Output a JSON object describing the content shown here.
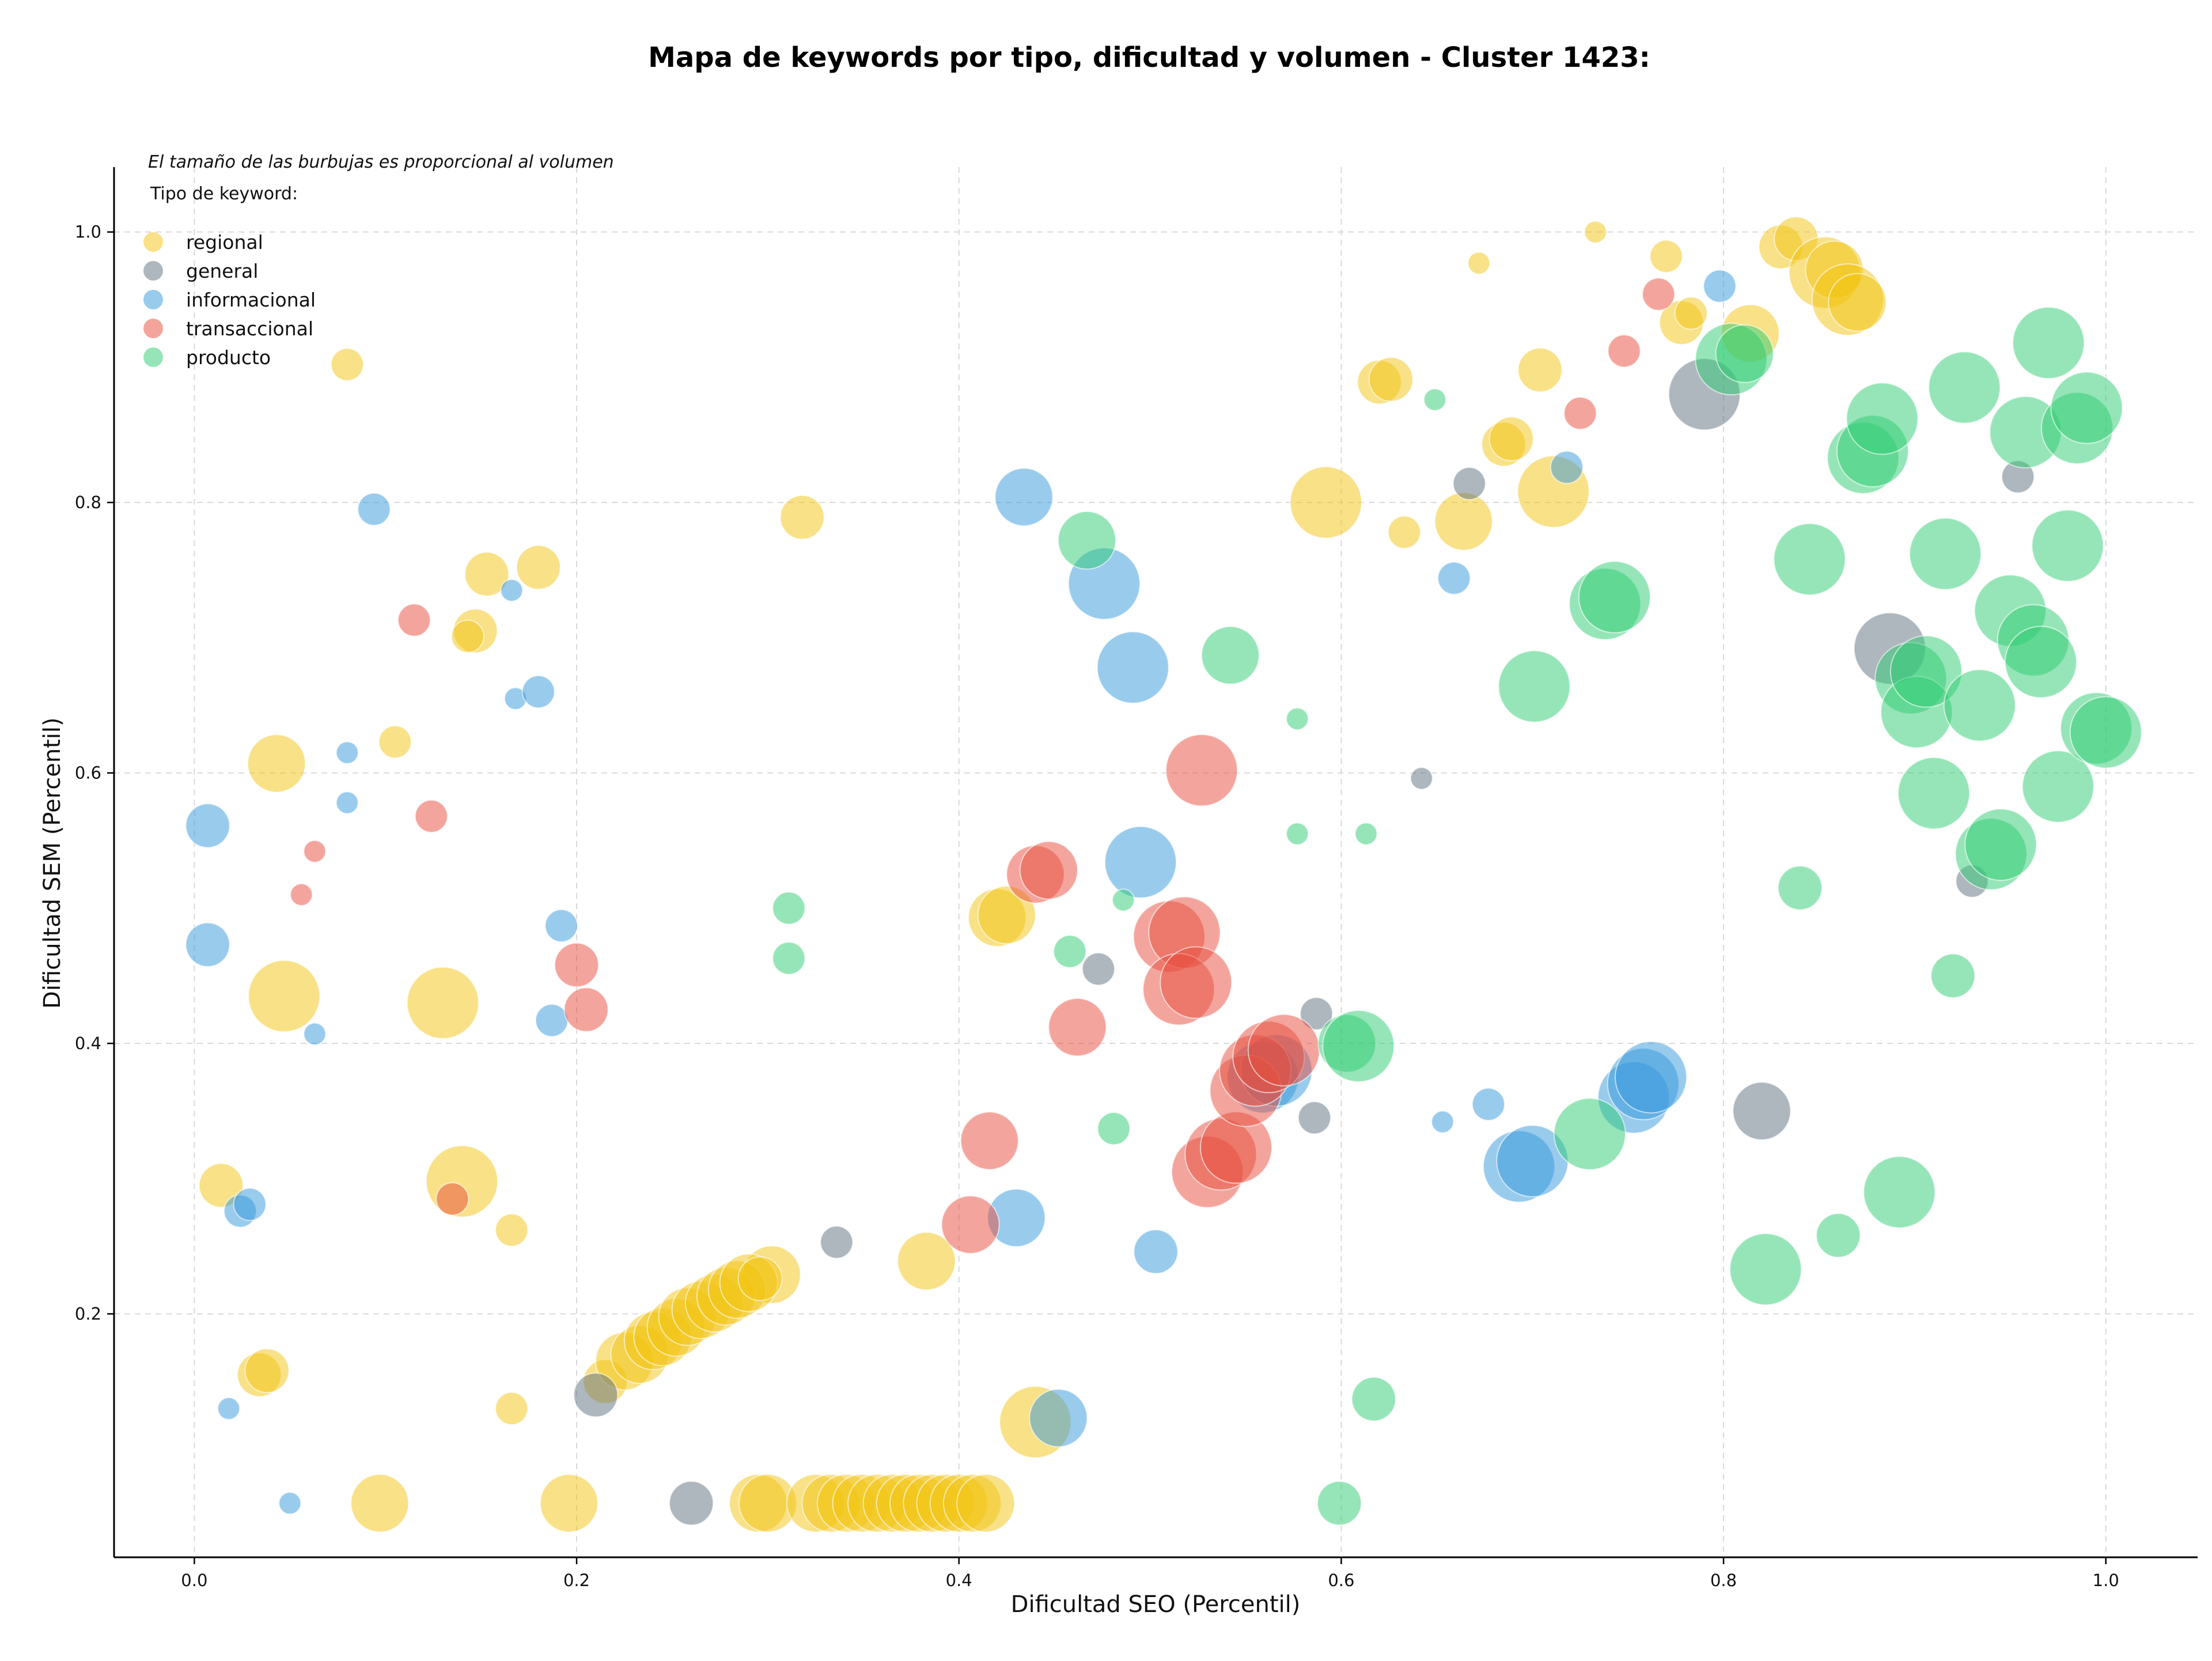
{
  "chart_data": {
    "type": "scatter",
    "title": "Mapa de keywords por tipo, dificultad y volumen - Cluster 1423:",
    "subtitle_note": "El tamaño de las burbujas es proporcional al volumen",
    "xlabel": "Dificultad SEO (Percentil)",
    "ylabel": "Dificultad SEM (Percentil)",
    "xlim": [
      -0.042,
      1.048
    ],
    "ylim": [
      0.02,
      1.048
    ],
    "xticks": [
      "0.0",
      "0.2",
      "0.4",
      "0.6",
      "0.8",
      "1.0"
    ],
    "xtick_values": [
      0,
      0.2,
      0.4,
      0.6,
      0.8,
      1.0
    ],
    "yticks": [
      "0.2",
      "0.4",
      "0.6",
      "0.8",
      "1.0"
    ],
    "ytick_values": [
      0.2,
      0.4,
      0.6,
      0.8,
      1.0
    ],
    "grid": true,
    "legend_title": "Tipo de keyword:",
    "legend_position": "top-left",
    "series": [
      {
        "name": "regional",
        "color": "#f1c40f",
        "points": [
          [
            0.08,
            0.902,
            2
          ],
          [
            0.318,
            0.789,
            3
          ],
          [
            0.153,
            0.747,
            3
          ],
          [
            0.18,
            0.752,
            3
          ],
          [
            0.147,
            0.705,
            3
          ],
          [
            0.143,
            0.701,
            2
          ],
          [
            0.043,
            0.607,
            4
          ],
          [
            0.105,
            0.623,
            2
          ],
          [
            0.047,
            0.435,
            5
          ],
          [
            0.13,
            0.43,
            5
          ],
          [
            0.014,
            0.295,
            3
          ],
          [
            0.14,
            0.298,
            5
          ],
          [
            0.166,
            0.262,
            2
          ],
          [
            0.034,
            0.155,
            3
          ],
          [
            0.038,
            0.158,
            3
          ],
          [
            0.166,
            0.13,
            2
          ],
          [
            0.097,
            0.06,
            4
          ],
          [
            0.196,
            0.06,
            4
          ],
          [
            0.42,
            0.493,
            4
          ],
          [
            0.425,
            0.495,
            4
          ],
          [
            0.383,
            0.239,
            4
          ],
          [
            0.44,
            0.12,
            5
          ],
          [
            0.302,
            0.229,
            4
          ],
          [
            0.215,
            0.15,
            3
          ],
          [
            0.225,
            0.165,
            4
          ],
          [
            0.233,
            0.17,
            4
          ],
          [
            0.24,
            0.18,
            4
          ],
          [
            0.245,
            0.183,
            4
          ],
          [
            0.252,
            0.19,
            4
          ],
          [
            0.258,
            0.198,
            4
          ],
          [
            0.265,
            0.203,
            4
          ],
          [
            0.272,
            0.208,
            4
          ],
          [
            0.278,
            0.213,
            4
          ],
          [
            0.284,
            0.218,
            4
          ],
          [
            0.29,
            0.223,
            4
          ],
          [
            0.296,
            0.226,
            3
          ],
          [
            0.295,
            0.06,
            4
          ],
          [
            0.3,
            0.06,
            4
          ],
          [
            0.325,
            0.06,
            4
          ],
          [
            0.333,
            0.06,
            4
          ],
          [
            0.341,
            0.06,
            4
          ],
          [
            0.349,
            0.06,
            4
          ],
          [
            0.357,
            0.06,
            4
          ],
          [
            0.365,
            0.06,
            4
          ],
          [
            0.372,
            0.06,
            4
          ],
          [
            0.379,
            0.06,
            4
          ],
          [
            0.386,
            0.06,
            4
          ],
          [
            0.393,
            0.06,
            4
          ],
          [
            0.4,
            0.06,
            4
          ],
          [
            0.407,
            0.06,
            4
          ],
          [
            0.414,
            0.06,
            4
          ],
          [
            0.592,
            0.8,
            5
          ],
          [
            0.62,
            0.889,
            3
          ],
          [
            0.626,
            0.891,
            3
          ],
          [
            0.633,
            0.778,
            2
          ],
          [
            0.664,
            0.786,
            4
          ],
          [
            0.672,
            0.977,
            1
          ],
          [
            0.685,
            0.843,
            3
          ],
          [
            0.689,
            0.847,
            3
          ],
          [
            0.704,
            0.898,
            3
          ],
          [
            0.711,
            0.808,
            5
          ],
          [
            0.733,
            1.0,
            1
          ],
          [
            0.77,
            0.982,
            2
          ],
          [
            0.778,
            0.933,
            3
          ],
          [
            0.783,
            0.94,
            2
          ],
          [
            0.814,
            0.925,
            4
          ],
          [
            0.83,
            0.989,
            3
          ],
          [
            0.838,
            0.995,
            3
          ],
          [
            0.853,
            0.97,
            5
          ],
          [
            0.858,
            0.972,
            4
          ],
          [
            0.865,
            0.95,
            5
          ],
          [
            0.87,
            0.948,
            4
          ]
        ]
      },
      {
        "name": "general",
        "color": "#5d6d7e",
        "points": [
          [
            0.21,
            0.14,
            3
          ],
          [
            0.26,
            0.06,
            3
          ],
          [
            0.336,
            0.253,
            2
          ],
          [
            0.473,
            0.455,
            2
          ],
          [
            0.586,
            0.345,
            2
          ],
          [
            0.587,
            0.422,
            2
          ],
          [
            0.642,
            0.596,
            1
          ],
          [
            0.667,
            0.814,
            2
          ],
          [
            0.79,
            0.88,
            5
          ],
          [
            0.82,
            0.35,
            4
          ],
          [
            0.887,
            0.692,
            5
          ],
          [
            0.93,
            0.52,
            2
          ],
          [
            0.954,
            0.819,
            2
          ]
        ]
      },
      {
        "name": "informacional",
        "color": "#3498db",
        "points": [
          [
            0.094,
            0.795,
            2
          ],
          [
            0.166,
            0.735,
            1
          ],
          [
            0.168,
            0.655,
            1
          ],
          [
            0.18,
            0.66,
            2
          ],
          [
            0.08,
            0.615,
            1
          ],
          [
            0.08,
            0.578,
            1
          ],
          [
            0.007,
            0.561,
            3
          ],
          [
            0.007,
            0.473,
            3
          ],
          [
            0.063,
            0.407,
            1
          ],
          [
            0.192,
            0.487,
            2
          ],
          [
            0.187,
            0.417,
            2
          ],
          [
            0.024,
            0.276,
            2
          ],
          [
            0.029,
            0.281,
            2
          ],
          [
            0.018,
            0.13,
            1
          ],
          [
            0.05,
            0.06,
            1
          ],
          [
            0.434,
            0.804,
            4
          ],
          [
            0.476,
            0.74,
            5
          ],
          [
            0.491,
            0.678,
            5
          ],
          [
            0.495,
            0.534,
            5
          ],
          [
            0.43,
            0.271,
            4
          ],
          [
            0.452,
            0.123,
            4
          ],
          [
            0.503,
            0.246,
            3
          ],
          [
            0.559,
            0.375,
            5
          ],
          [
            0.566,
            0.38,
            5
          ],
          [
            0.653,
            0.342,
            1
          ],
          [
            0.659,
            0.744,
            2
          ],
          [
            0.677,
            0.355,
            2
          ],
          [
            0.693,
            0.309,
            5
          ],
          [
            0.7,
            0.313,
            5
          ],
          [
            0.718,
            0.826,
            2
          ],
          [
            0.753,
            0.36,
            5
          ],
          [
            0.758,
            0.37,
            5
          ],
          [
            0.762,
            0.375,
            5
          ],
          [
            0.798,
            0.96,
            2
          ]
        ]
      },
      {
        "name": "transaccional",
        "color": "#e74c3c",
        "points": [
          [
            0.115,
            0.713,
            2
          ],
          [
            0.124,
            0.568,
            2
          ],
          [
            0.063,
            0.542,
            1
          ],
          [
            0.056,
            0.51,
            1
          ],
          [
            0.2,
            0.458,
            3
          ],
          [
            0.205,
            0.425,
            3
          ],
          [
            0.135,
            0.285,
            2
          ],
          [
            0.416,
            0.328,
            4
          ],
          [
            0.406,
            0.266,
            4
          ],
          [
            0.44,
            0.525,
            4
          ],
          [
            0.447,
            0.528,
            4
          ],
          [
            0.462,
            0.412,
            4
          ],
          [
            0.51,
            0.479,
            5
          ],
          [
            0.518,
            0.482,
            5
          ],
          [
            0.515,
            0.44,
            5
          ],
          [
            0.524,
            0.445,
            5
          ],
          [
            0.527,
            0.602,
            5
          ],
          [
            0.53,
            0.305,
            5
          ],
          [
            0.537,
            0.318,
            5
          ],
          [
            0.545,
            0.323,
            5
          ],
          [
            0.55,
            0.365,
            5
          ],
          [
            0.555,
            0.38,
            5
          ],
          [
            0.562,
            0.39,
            5
          ],
          [
            0.57,
            0.395,
            5
          ],
          [
            0.725,
            0.866,
            2
          ],
          [
            0.748,
            0.912,
            2
          ],
          [
            0.766,
            0.954,
            2
          ]
        ]
      },
      {
        "name": "producto",
        "color": "#2ecc71",
        "points": [
          [
            0.311,
            0.5,
            2
          ],
          [
            0.311,
            0.463,
            2
          ],
          [
            0.458,
            0.468,
            2
          ],
          [
            0.467,
            0.772,
            4
          ],
          [
            0.481,
            0.337,
            2
          ],
          [
            0.486,
            0.506,
            1
          ],
          [
            0.542,
            0.687,
            4
          ],
          [
            0.577,
            0.64,
            1
          ],
          [
            0.577,
            0.555,
            1
          ],
          [
            0.599,
            0.06,
            3
          ],
          [
            0.603,
            0.4,
            4
          ],
          [
            0.609,
            0.398,
            5
          ],
          [
            0.613,
            0.555,
            1
          ],
          [
            0.617,
            0.137,
            3
          ],
          [
            0.649,
            0.876,
            1
          ],
          [
            0.701,
            0.664,
            5
          ],
          [
            0.73,
            0.333,
            5
          ],
          [
            0.738,
            0.725,
            5
          ],
          [
            0.743,
            0.73,
            5
          ],
          [
            0.804,
            0.906,
            5
          ],
          [
            0.811,
            0.91,
            4
          ],
          [
            0.822,
            0.233,
            5
          ],
          [
            0.84,
            0.515,
            3
          ],
          [
            0.845,
            0.758,
            5
          ],
          [
            0.86,
            0.258,
            3
          ],
          [
            0.873,
            0.833,
            5
          ],
          [
            0.878,
            0.838,
            5
          ],
          [
            0.883,
            0.862,
            5
          ],
          [
            0.892,
            0.29,
            5
          ],
          [
            0.898,
            0.67,
            5
          ],
          [
            0.901,
            0.645,
            5
          ],
          [
            0.906,
            0.675,
            5
          ],
          [
            0.91,
            0.585,
            5
          ],
          [
            0.916,
            0.762,
            5
          ],
          [
            0.92,
            0.45,
            3
          ],
          [
            0.926,
            0.885,
            5
          ],
          [
            0.934,
            0.65,
            5
          ],
          [
            0.94,
            0.54,
            5
          ],
          [
            0.945,
            0.547,
            5
          ],
          [
            0.95,
            0.72,
            5
          ],
          [
            0.958,
            0.852,
            5
          ],
          [
            0.962,
            0.698,
            5
          ],
          [
            0.966,
            0.682,
            5
          ],
          [
            0.97,
            0.918,
            5
          ],
          [
            0.975,
            0.59,
            5
          ],
          [
            0.98,
            0.768,
            5
          ],
          [
            0.985,
            0.855,
            5
          ],
          [
            0.99,
            0.87,
            5
          ],
          [
            0.995,
            0.633,
            5
          ],
          [
            1.0,
            0.63,
            5
          ]
        ]
      }
    ]
  }
}
